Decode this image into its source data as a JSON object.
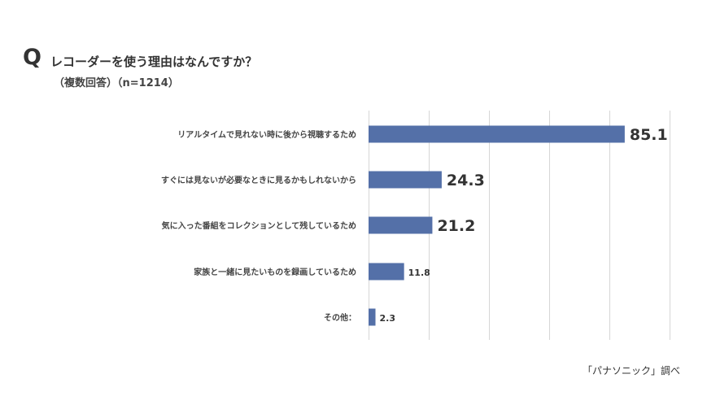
{
  "header": {
    "q_mark": "Q",
    "title": "レコーダーを使う理由はなんですか？",
    "subtitle": "（複数回答）（n=1214）"
  },
  "source": "「パナソニック」調べ",
  "colors": {
    "bar": "#5470a8",
    "grid": "#d6d6d6",
    "text": "#333333"
  },
  "chart_data": {
    "type": "bar",
    "orientation": "horizontal",
    "categories": [
      "リアルタイムで見れない時に後から視聴するため",
      "すぐには見ないが必要なときに見るかもしれないから",
      "気に入った番組をコレクションとして残しているため",
      "家族と一緒に見たいものを録画しているため",
      "その他："
    ],
    "values": [
      85.1,
      24.3,
      21.2,
      11.8,
      2.3
    ],
    "xlim": [
      0,
      100
    ],
    "grid": true,
    "legend": "none"
  }
}
